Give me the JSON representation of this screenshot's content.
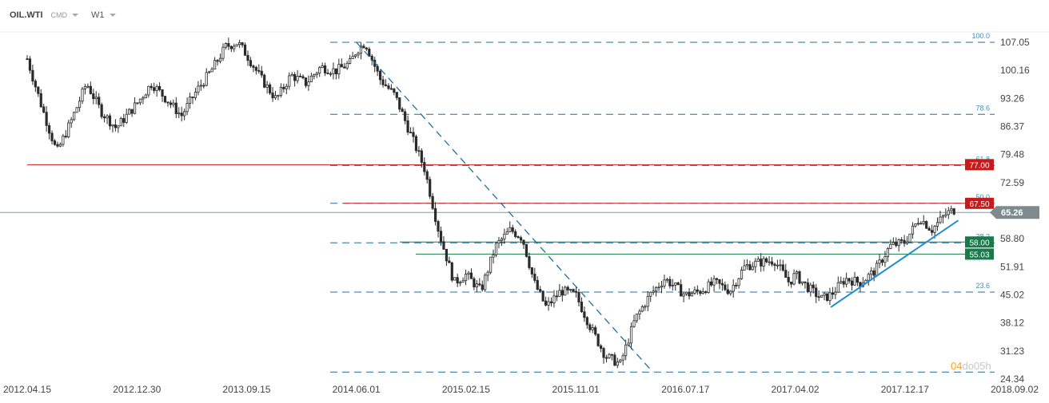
{
  "header": {
    "symbol": "OIL.WTI",
    "instrument_type": "CMD",
    "timeframe": "W1"
  },
  "watermark": {
    "brand_part1": "04",
    "brand_part2": "do05h"
  },
  "colors": {
    "candle": "#2b2b2b",
    "fib_line": "#1f6f9e",
    "trend_line": "#1f8fd0",
    "resistance": "#c81a1a",
    "support": "#1a7a4c",
    "current_price_bg": "#7e8a8e",
    "fib_label": "#3a8fc1",
    "axis_text": "#444444",
    "watermark_a": "#f5a623",
    "watermark_b": "#c8c8c8"
  },
  "chart_data": {
    "type": "candlestick",
    "title": "",
    "xlabel": "",
    "ylabel": "",
    "y_axis_ticks": [
      107.05,
      100.16,
      93.26,
      86.37,
      79.48,
      72.59,
      65.26,
      58.8,
      51.91,
      45.02,
      38.12,
      31.23,
      24.34
    ],
    "x_axis_ticks": [
      "2012.04.15",
      "2012.12.30",
      "2013.09.15",
      "2014.06.01",
      "2015.02.15",
      "2015.11.01",
      "2016.07.17",
      "2017.04.02",
      "2017.12.17",
      "2018.09.02"
    ],
    "current_price": 65.26,
    "price_path": [
      [
        "2012.04.15",
        103.0
      ],
      [
        "2012.05.20",
        91.0
      ],
      [
        "2012.06.24",
        80.0
      ],
      [
        "2012.07.29",
        88.0
      ],
      [
        "2012.09.02",
        97.0
      ],
      [
        "2012.10.07",
        90.0
      ],
      [
        "2012.11.11",
        86.0
      ],
      [
        "2012.12.30",
        92.0
      ],
      [
        "2013.02.03",
        97.0
      ],
      [
        "2013.03.10",
        93.0
      ],
      [
        "2013.04.14",
        89.0
      ],
      [
        "2013.05.19",
        95.0
      ],
      [
        "2013.06.23",
        100.0
      ],
      [
        "2013.07.28",
        106.0
      ],
      [
        "2013.08.25",
        107.0
      ],
      [
        "2013.09.15",
        104.0
      ],
      [
        "2013.10.20",
        98.0
      ],
      [
        "2013.11.24",
        93.0
      ],
      [
        "2013.12.29",
        99.0
      ],
      [
        "2014.02.02",
        97.0
      ],
      [
        "2014.03.09",
        101.0
      ],
      [
        "2014.04.13",
        100.0
      ],
      [
        "2014.05.18",
        102.0
      ],
      [
        "2014.06.01",
        105.0
      ],
      [
        "2014.06.22",
        107.0
      ],
      [
        "2014.07.27",
        98.0
      ],
      [
        "2014.08.31",
        94.0
      ],
      [
        "2014.10.05",
        85.0
      ],
      [
        "2014.11.09",
        76.0
      ],
      [
        "2014.12.14",
        60.0
      ],
      [
        "2015.01.18",
        48.0
      ],
      [
        "2015.02.15",
        50.0
      ],
      [
        "2015.03.22",
        46.0
      ],
      [
        "2015.04.26",
        57.0
      ],
      [
        "2015.05.31",
        61.0
      ],
      [
        "2015.06.28",
        59.0
      ],
      [
        "2015.07.26",
        48.0
      ],
      [
        "2015.08.23",
        42.0
      ],
      [
        "2015.09.27",
        46.0
      ],
      [
        "2015.11.01",
        45.0
      ],
      [
        "2015.12.06",
        37.0
      ],
      [
        "2016.01.10",
        30.0
      ],
      [
        "2016.02.14",
        28.0
      ],
      [
        "2016.03.20",
        39.0
      ],
      [
        "2016.04.24",
        45.0
      ],
      [
        "2016.05.29",
        49.0
      ],
      [
        "2016.07.17",
        45.0
      ],
      [
        "2016.08.21",
        46.0
      ],
      [
        "2016.09.25",
        48.0
      ],
      [
        "2016.10.30",
        46.0
      ],
      [
        "2016.12.04",
        52.0
      ],
      [
        "2017.01.08",
        53.0
      ],
      [
        "2017.02.12",
        53.5
      ],
      [
        "2017.03.19",
        48.0
      ],
      [
        "2017.04.02",
        50.0
      ],
      [
        "2017.04.30",
        47.0
      ],
      [
        "2017.06.04",
        44.0
      ],
      [
        "2017.06.25",
        45.0
      ],
      [
        "2017.07.30",
        49.0
      ],
      [
        "2017.09.03",
        48.0
      ],
      [
        "2017.10.08",
        51.0
      ],
      [
        "2017.11.12",
        57.0
      ],
      [
        "2017.12.17",
        58.0
      ],
      [
        "2018.01.21",
        64.0
      ],
      [
        "2018.02.18",
        61.0
      ],
      [
        "2018.03.25",
        65.0
      ],
      [
        "2018.04.15",
        66.0
      ]
    ],
    "fibonacci_levels": [
      {
        "label": "100.0",
        "price": 107.05
      },
      {
        "label": "78.6",
        "price": 89.35
      },
      {
        "label": "61.8",
        "price": 76.8
      },
      {
        "label": "50.0",
        "price": 67.5
      },
      {
        "label": "38.2",
        "price": 57.8
      },
      {
        "label": "23.6",
        "price": 45.7
      },
      {
        "label": "",
        "price": 26.05
      }
    ],
    "horizontal_levels": [
      {
        "label": "77.00",
        "price": 77.0,
        "kind": "resistance"
      },
      {
        "label": "67.50",
        "price": 67.5,
        "kind": "resistance"
      },
      {
        "label": "58.00",
        "price": 58.0,
        "kind": "support"
      },
      {
        "label": "55.03",
        "price": 55.03,
        "kind": "support"
      }
    ],
    "trend_lines": [
      {
        "from": [
          "2014.06.01",
          107.05
        ],
        "to": [
          "2016.05.01",
          26.05
        ],
        "style": "dashed"
      },
      {
        "from": [
          "2017.06.25",
          42.0
        ],
        "to": [
          "2018.04.22",
          63.3
        ],
        "style": "solid"
      }
    ]
  }
}
